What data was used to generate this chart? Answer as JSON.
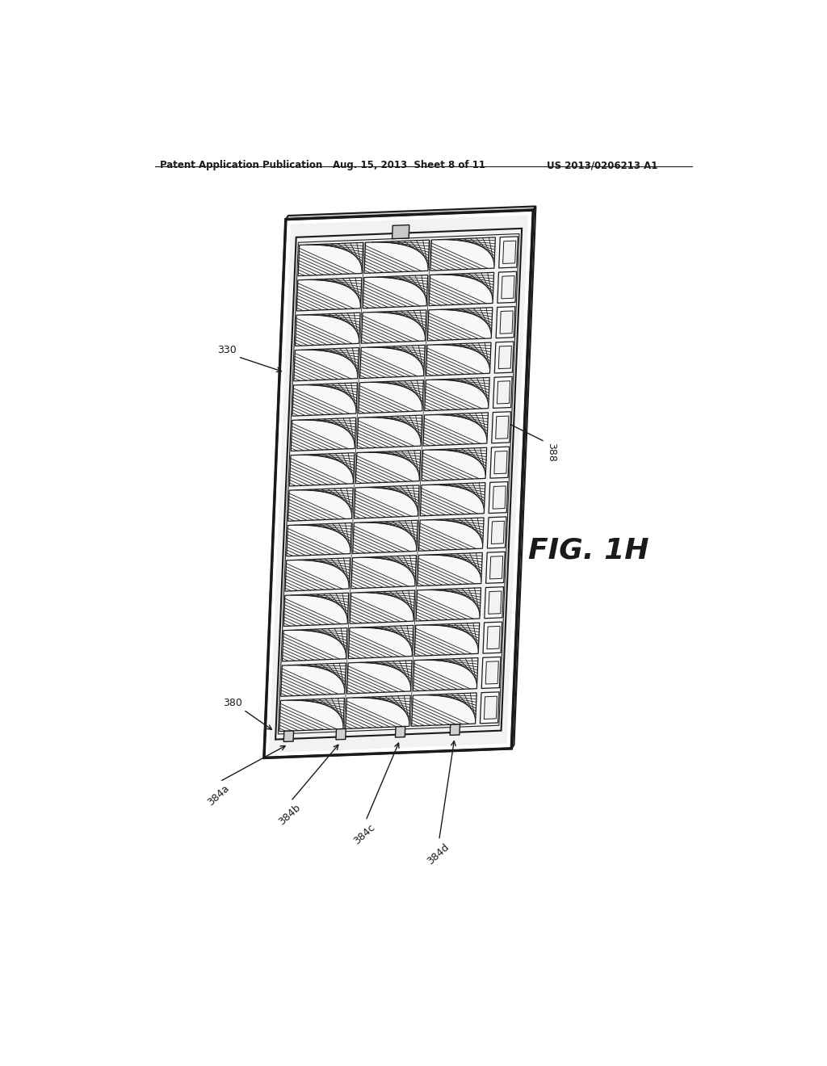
{
  "bg_color": "#ffffff",
  "line_color": "#1a1a1a",
  "header_left": "Patent Application Publication",
  "header_mid": "Aug. 15, 2013  Sheet 8 of 11",
  "header_right": "US 2013/0206213 A1",
  "fig_label": "FIG. 1H",
  "label_330": "330",
  "label_388": "388",
  "label_380": "380",
  "label_384a": "384a",
  "label_384b": "384b",
  "label_384c": "384c",
  "label_384d": "384d",
  "panel_face_color": "#f2f2f2",
  "panel_top_color": "#d0d0d0",
  "panel_right_color": "#c0c0c0",
  "cell_fill": "#f8f8f8",
  "n_cols": 3,
  "n_rows": 14,
  "n_hatch_lines": 10
}
